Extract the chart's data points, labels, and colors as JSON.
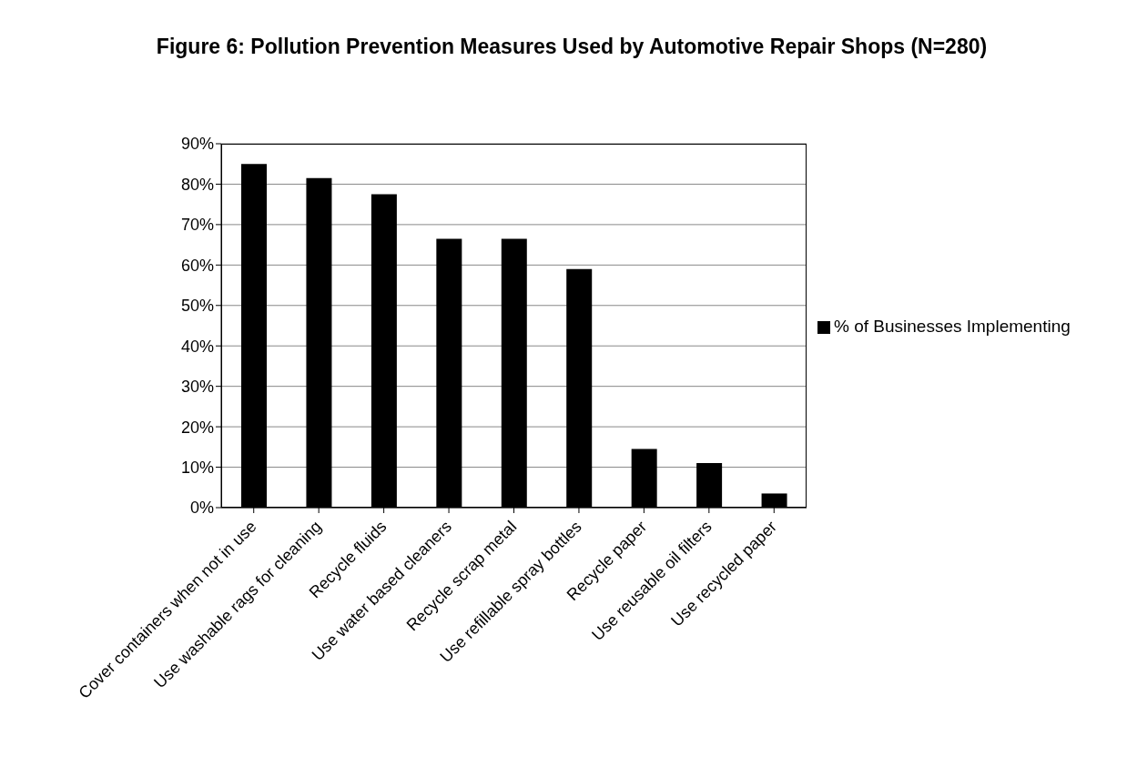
{
  "chart_data": {
    "type": "bar",
    "title": "Figure 6: Pollution Prevention Measures Used by Automotive Repair Shops (N=280)",
    "categories": [
      "Cover containers when not in use",
      "Use washable rags for cleaning",
      "Recycle fluids",
      "Use water based cleaners",
      "Recycle scrap metal",
      "Use refillable spray bottles",
      "Recycle paper",
      "Use reusable oil filters",
      "Use recycled paper"
    ],
    "series": [
      {
        "name": "% of Businesses Implementing",
        "color": "#000000",
        "values": [
          85,
          81.5,
          77.5,
          66.5,
          66.5,
          59,
          14.5,
          11,
          3.5
        ]
      }
    ],
    "ylim": [
      0,
      90
    ],
    "yticks": [
      {
        "value": 0,
        "label": "0%"
      },
      {
        "value": 10,
        "label": "10%"
      },
      {
        "value": 20,
        "label": "20%"
      },
      {
        "value": 30,
        "label": "30%"
      },
      {
        "value": 40,
        "label": "40%"
      },
      {
        "value": 50,
        "label": "50%"
      },
      {
        "value": 60,
        "label": "60%"
      },
      {
        "value": 70,
        "label": "70%"
      },
      {
        "value": 80,
        "label": "80%"
      },
      {
        "value": 90,
        "label": "90%"
      }
    ],
    "grid": "y",
    "legend": "right"
  }
}
